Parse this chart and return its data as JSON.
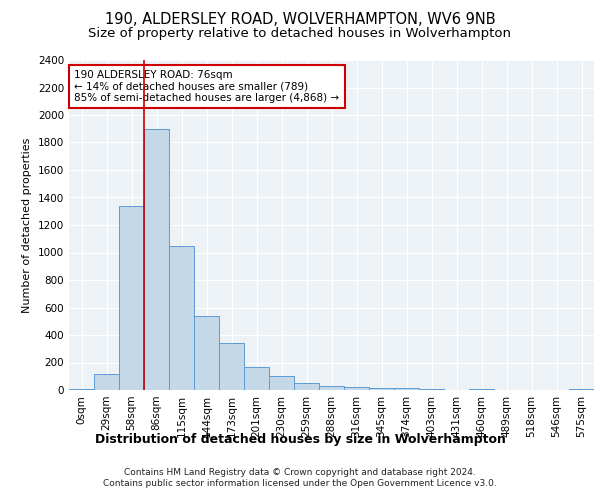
{
  "title1": "190, ALDERSLEY ROAD, WOLVERHAMPTON, WV6 9NB",
  "title2": "Size of property relative to detached houses in Wolverhampton",
  "xlabel": "Distribution of detached houses by size in Wolverhampton",
  "ylabel": "Number of detached properties",
  "footer1": "Contains HM Land Registry data © Crown copyright and database right 2024.",
  "footer2": "Contains public sector information licensed under the Open Government Licence v3.0.",
  "annotation_title": "190 ALDERSLEY ROAD: 76sqm",
  "annotation_line1": "← 14% of detached houses are smaller (789)",
  "annotation_line2": "85% of semi-detached houses are larger (4,868) →",
  "bar_categories": [
    "0sqm",
    "29sqm",
    "58sqm",
    "86sqm",
    "115sqm",
    "144sqm",
    "173sqm",
    "201sqm",
    "230sqm",
    "259sqm",
    "288sqm",
    "316sqm",
    "345sqm",
    "374sqm",
    "403sqm",
    "431sqm",
    "460sqm",
    "489sqm",
    "518sqm",
    "546sqm",
    "575sqm"
  ],
  "bar_values": [
    10,
    120,
    1340,
    1900,
    1050,
    540,
    340,
    165,
    100,
    50,
    30,
    20,
    15,
    12,
    5,
    0,
    10,
    0,
    0,
    0,
    10
  ],
  "bar_color": "#c5d8e8",
  "bar_edge_color": "#5b9bd5",
  "vline_x": 2.5,
  "vline_color": "#cc0000",
  "annotation_box_color": "#cc0000",
  "ylim": [
    0,
    2400
  ],
  "yticks": [
    0,
    200,
    400,
    600,
    800,
    1000,
    1200,
    1400,
    1600,
    1800,
    2000,
    2200,
    2400
  ],
  "background_color": "#edf2f7",
  "grid_color": "#ffffff",
  "title1_fontsize": 10.5,
  "title2_fontsize": 9.5,
  "xlabel_fontsize": 9,
  "ylabel_fontsize": 8,
  "tick_fontsize": 7.5,
  "annotation_fontsize": 7.5,
  "footer_fontsize": 6.5
}
